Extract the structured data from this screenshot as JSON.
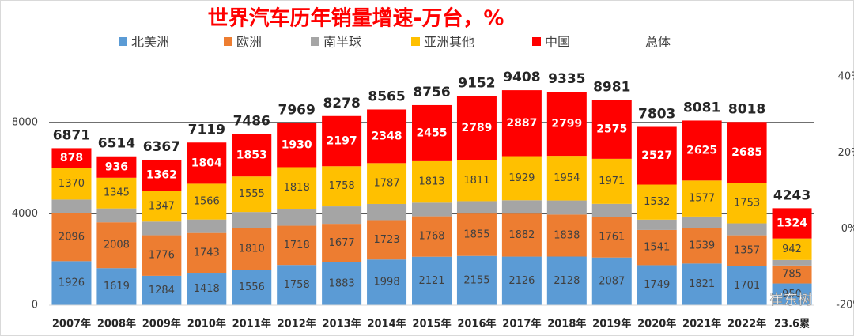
{
  "chart_data": {
    "type": "stacked_bar",
    "title": "世界汽车历年销量增速-万台，%",
    "categories": [
      "2007年",
      "2008年",
      "2009年",
      "2010年",
      "2011年",
      "2012年",
      "2013年",
      "2014年",
      "2015年",
      "2016年",
      "2017年",
      "2018年",
      "2019年",
      "2020年",
      "2021年",
      "2022年",
      "23.6累"
    ],
    "series": [
      {
        "name": "北美洲",
        "color": "#5b9bd5",
        "labeled": true,
        "values": [
          1926,
          1619,
          1284,
          1418,
          1556,
          1758,
          1883,
          1998,
          2121,
          2155,
          2126,
          2128,
          2087,
          1749,
          1821,
          1701,
          950
        ]
      },
      {
        "name": "欧洲",
        "color": "#ed7d31",
        "labeled": true,
        "values": [
          2096,
          2008,
          1776,
          1743,
          1810,
          1718,
          1677,
          1723,
          1768,
          1855,
          1882,
          1838,
          1761,
          1541,
          1539,
          1357,
          785
        ]
      },
      {
        "name": "南半球",
        "color": "#a5a5a5",
        "labeled": false,
        "values": [
          601,
          606,
          598,
          588,
          712,
          745,
          763,
          709,
          599,
          542,
          584,
          616,
          587,
          454,
          519,
          522,
          242
        ]
      },
      {
        "name": "亚洲其他",
        "color": "#ffc000",
        "labeled": true,
        "values": [
          1370,
          1345,
          1347,
          1566,
          1555,
          1818,
          1758,
          1787,
          1813,
          1811,
          1929,
          1954,
          1971,
          1532,
          1577,
          1753,
          942
        ]
      },
      {
        "name": "中国",
        "color": "#ff0000",
        "labeled": true,
        "values": [
          878,
          936,
          1362,
          1804,
          1853,
          1930,
          2197,
          2348,
          2455,
          2789,
          2887,
          2799,
          2575,
          2527,
          2625,
          2685,
          1324
        ]
      }
    ],
    "totals": {
      "name": "总体",
      "values": [
        6871,
        6514,
        6367,
        7119,
        7486,
        7969,
        8278,
        8565,
        8756,
        9152,
        9408,
        9335,
        8981,
        7803,
        8081,
        8018,
        4243
      ]
    },
    "ylim": [
      0,
      10000
    ],
    "yticks": [
      0,
      4000,
      8000
    ],
    "y2lim": [
      -20,
      40
    ],
    "y2ticks": [
      {
        "value": 40,
        "label": "40%"
      },
      {
        "value": 20,
        "label": "20%"
      },
      {
        "value": 0,
        "label": "0%"
      },
      {
        "value": -20,
        "label": "-20%"
      }
    ],
    "grid": true,
    "watermark": "崔东树"
  }
}
